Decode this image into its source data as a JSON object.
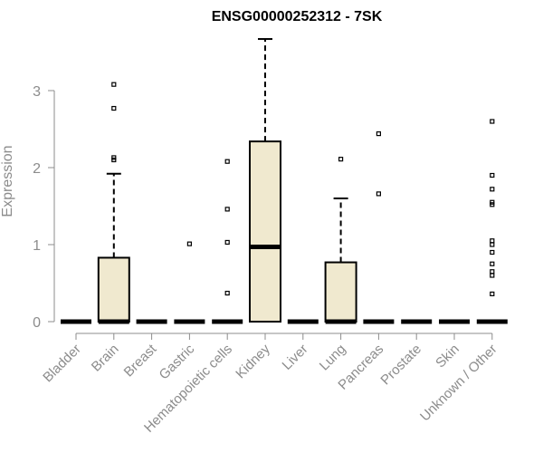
{
  "chart_data": {
    "type": "boxplot",
    "title": "ENSG00000252312 - 7SK",
    "ylabel": "Expression",
    "xlabel": "",
    "ylim": [
      0,
      3.7
    ],
    "yticks": [
      0,
      1,
      2,
      3
    ],
    "categories": [
      "Bladder",
      "Brain",
      "Breast",
      "Gastric",
      "Hematopoietic cells",
      "Kidney",
      "Liver",
      "Lung",
      "Pancreas",
      "Prostate",
      "Skin",
      "Unknown / Other"
    ],
    "boxes": [
      {
        "category": "Bladder",
        "q1": 0,
        "median": 0,
        "q3": 0,
        "whisker_low": 0,
        "whisker_high": 0,
        "outliers": []
      },
      {
        "category": "Brain",
        "q1": 0,
        "median": 0,
        "q3": 0.83,
        "whisker_low": 0,
        "whisker_high": 1.92,
        "outliers": [
          2.1,
          2.13,
          2.77,
          3.08
        ]
      },
      {
        "category": "Breast",
        "q1": 0,
        "median": 0,
        "q3": 0,
        "whisker_low": 0,
        "whisker_high": 0,
        "outliers": []
      },
      {
        "category": "Gastric",
        "q1": 0,
        "median": 0,
        "q3": 0,
        "whisker_low": 0,
        "whisker_high": 0,
        "outliers": [
          1.01
        ]
      },
      {
        "category": "Hematopoietic cells",
        "q1": 0,
        "median": 0,
        "q3": 0,
        "whisker_low": 0,
        "whisker_high": 0,
        "outliers": [
          0.37,
          1.03,
          1.46,
          2.08
        ]
      },
      {
        "category": "Kidney",
        "q1": 0,
        "median": 0.97,
        "q3": 2.34,
        "whisker_low": 0,
        "whisker_high": 3.67,
        "outliers": []
      },
      {
        "category": "Liver",
        "q1": 0,
        "median": 0,
        "q3": 0,
        "whisker_low": 0,
        "whisker_high": 0,
        "outliers": []
      },
      {
        "category": "Lung",
        "q1": 0,
        "median": 0,
        "q3": 0.77,
        "whisker_low": 0,
        "whisker_high": 1.6,
        "outliers": [
          2.11
        ]
      },
      {
        "category": "Pancreas",
        "q1": 0,
        "median": 0,
        "q3": 0,
        "whisker_low": 0,
        "whisker_high": 0,
        "outliers": [
          1.66,
          2.44
        ]
      },
      {
        "category": "Prostate",
        "q1": 0,
        "median": 0,
        "q3": 0,
        "whisker_low": 0,
        "whisker_high": 0,
        "outliers": []
      },
      {
        "category": "Skin",
        "q1": 0,
        "median": 0,
        "q3": 0,
        "whisker_low": 0,
        "whisker_high": 0,
        "outliers": []
      },
      {
        "category": "Unknown / Other",
        "q1": 0,
        "median": 0,
        "q3": 0,
        "whisker_low": 0,
        "whisker_high": 0,
        "outliers": [
          0.36,
          0.6,
          0.65,
          0.75,
          0.9,
          1.0,
          1.05,
          1.52,
          1.55,
          1.72,
          1.9,
          2.6
        ]
      }
    ],
    "box_color": "#f0e9cf",
    "grid": false,
    "legend": "none"
  }
}
